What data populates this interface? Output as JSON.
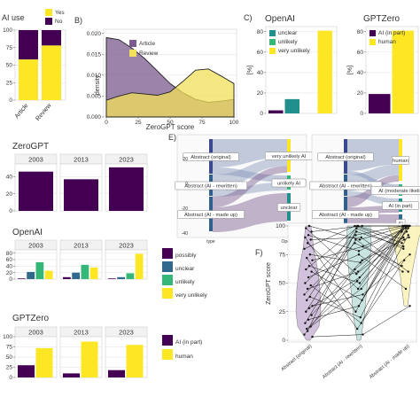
{
  "panel_labels": {
    "b": "B)",
    "c": "C)",
    "e": "E)",
    "f": "F)"
  },
  "colors": {
    "purple": "#440154",
    "yellow": "#fde725",
    "teal": "#21908d",
    "navy": "#31688e",
    "green": "#35b779",
    "gray_bg": "#ebebeb",
    "strip": "#f2f2f2"
  },
  "chart_data": [
    {
      "id": "A",
      "type": "bar",
      "title": "AI use",
      "categories": [
        "Article",
        "Review"
      ],
      "series": [
        {
          "name": "No",
          "values": [
            42,
            22
          ]
        },
        {
          "name": "Yes",
          "values": [
            58,
            78
          ]
        }
      ],
      "ylim": [
        0,
        100
      ],
      "yticks": [
        0,
        25,
        50,
        75,
        100
      ],
      "legend": [
        "Yes",
        "No"
      ]
    },
    {
      "id": "B",
      "type": "area",
      "xlabel": "ZeroGPT score",
      "ylabel": "density",
      "xticks": [
        0,
        25,
        50,
        75,
        100
      ],
      "yticks": [
        0.0,
        0.005,
        0.01,
        0.015,
        0.02
      ],
      "xlim": [
        0,
        100
      ],
      "ylim": [
        0,
        0.021
      ],
      "x": [
        0,
        10,
        20,
        30,
        40,
        50,
        60,
        70,
        80,
        90,
        100
      ],
      "series": [
        {
          "name": "Article",
          "values": [
            0.019,
            0.0185,
            0.0165,
            0.014,
            0.011,
            0.008,
            0.0058,
            0.0042,
            0.0035,
            0.0038,
            0.0042
          ]
        },
        {
          "name": "Review",
          "values": [
            0.004,
            0.005,
            0.0058,
            0.0055,
            0.0052,
            0.006,
            0.0085,
            0.0112,
            0.0115,
            0.0098,
            0.008
          ]
        }
      ]
    },
    {
      "id": "C1",
      "type": "bar",
      "title": "OpenAI",
      "ylabel": "[%]",
      "categories": [
        "possibly",
        "unclear",
        "unlikely",
        "very unlikely"
      ],
      "values": [
        3,
        14,
        0,
        81
      ],
      "ylim": [
        0,
        85
      ],
      "yticks": [
        0,
        20,
        40,
        60,
        80
      ],
      "legend": [
        "unclear",
        "unlikely",
        "very unlikely"
      ]
    },
    {
      "id": "C2",
      "type": "bar",
      "title": "GPTZero",
      "ylabel": "[%]",
      "categories": [
        "AI (in part)",
        "human"
      ],
      "values": [
        19,
        81
      ],
      "ylim": [
        0,
        85
      ],
      "yticks": [
        0,
        20,
        40,
        60,
        80
      ],
      "legend": [
        "AI (in part)",
        "human"
      ]
    },
    {
      "id": "D1",
      "type": "bar",
      "title": "ZeroGPT",
      "facets": [
        "2003",
        "2013",
        "2023"
      ],
      "values": [
        46,
        37,
        51
      ],
      "ylim": [
        0,
        55
      ],
      "yticks": [
        0,
        20,
        40
      ]
    },
    {
      "id": "D2",
      "type": "bar",
      "title": "OpenAI",
      "facets": [
        "2003",
        "2013",
        "2023"
      ],
      "categories": [
        "possibly",
        "unclear",
        "unlikely",
        "very unlikely"
      ],
      "facet_values": [
        [
          2,
          22,
          52,
          26
        ],
        [
          6,
          20,
          44,
          36
        ],
        [
          2,
          6,
          18,
          78
        ]
      ],
      "ylim": [
        0,
        90
      ],
      "yticks": [
        0,
        20,
        40,
        60,
        80
      ],
      "legend": [
        "possibly",
        "unclear",
        "unlikely",
        "very unlikely"
      ]
    },
    {
      "id": "D3",
      "type": "bar",
      "title": "GPTZero",
      "facets": [
        "2003",
        "2013",
        "2023"
      ],
      "categories": [
        "AI (in part)",
        "human"
      ],
      "facet_values": [
        [
          30,
          72
        ],
        [
          10,
          88
        ],
        [
          18,
          80
        ]
      ],
      "ylim": [
        0,
        100
      ],
      "yticks": [
        0,
        25,
        50,
        75,
        100
      ],
      "legend": [
        "AI (in part)",
        "human"
      ]
    },
    {
      "id": "E1",
      "type": "sankey",
      "left": [
        "Abstract (original)",
        "Abstract (AI - rewritten)",
        "Abstract (AI - made up)"
      ],
      "right": [
        "very unlikely AI",
        "unlikely AI",
        "unclear"
      ],
      "left_axis": "type",
      "right_axis": "OpenAI",
      "yticks": [
        "20",
        "0",
        "-20",
        "-40"
      ]
    },
    {
      "id": "E2",
      "type": "sankey",
      "left": [
        "Abstract (original)",
        "Abstract (AI - rewritten)",
        "Abstract (AI - made up)"
      ],
      "right": [
        "human",
        "AI (moderate likelih",
        "AI (in part)",
        "AI"
      ],
      "left_axis": "type",
      "right_axis": "GPTZero"
    },
    {
      "id": "F",
      "type": "scatter",
      "ylabel": "ZeroGPT score",
      "categories": [
        "Abstract (original)",
        "Abstract (AI - rewritten)",
        "Abstract (AI - made up)"
      ],
      "ylim": [
        0,
        100
      ],
      "yticks": [
        0,
        25,
        50,
        75,
        100
      ],
      "pairs": [
        [
          5,
          62,
          95
        ],
        [
          8,
          100,
          100
        ],
        [
          12,
          45,
          98
        ],
        [
          15,
          88,
          60
        ],
        [
          18,
          30,
          100
        ],
        [
          22,
          70,
          90
        ],
        [
          25,
          95,
          82
        ],
        [
          28,
          55,
          100
        ],
        [
          30,
          40,
          75
        ],
        [
          35,
          100,
          88
        ],
        [
          38,
          20,
          100
        ],
        [
          40,
          85,
          65
        ],
        [
          45,
          60,
          100
        ],
        [
          48,
          15,
          92
        ],
        [
          50,
          92,
          100
        ],
        [
          55,
          75,
          45
        ],
        [
          60,
          35,
          100
        ],
        [
          62,
          98,
          80
        ],
        [
          65,
          50,
          95
        ],
        [
          70,
          82,
          100
        ],
        [
          72,
          10,
          70
        ],
        [
          75,
          68,
          100
        ],
        [
          80,
          100,
          85
        ],
        [
          85,
          45,
          100
        ],
        [
          88,
          90,
          60
        ],
        [
          90,
          25,
          100
        ],
        [
          92,
          78,
          98
        ],
        [
          95,
          100,
          100
        ],
        [
          98,
          58,
          90
        ],
        [
          100,
          88,
          100
        ],
        [
          3,
          5,
          30
        ],
        [
          10,
          52,
          100
        ]
      ]
    }
  ]
}
